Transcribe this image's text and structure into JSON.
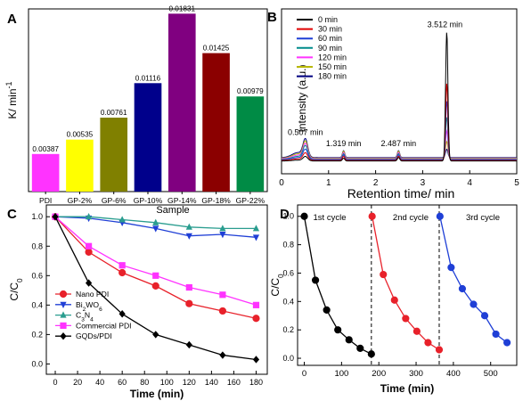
{
  "chart_data": [
    {
      "panel": "A",
      "type": "bar",
      "ylabel": "K/ min-1",
      "xlabel": "Sample",
      "categories": [
        "PDI",
        "GP-2%",
        "GP-6%",
        "GP-10%",
        "GP-14%",
        "GP-18%",
        "GP-22%"
      ],
      "values": [
        0.00387,
        0.00535,
        0.00761,
        0.01116,
        0.01831,
        0.01425,
        0.00979
      ],
      "labels": [
        "0.00387",
        "0.00535",
        "0.00761",
        "0.01116",
        "0.01831",
        "0.01425",
        "0.00979"
      ],
      "colors": [
        "#ff33ff",
        "#ffff00",
        "#808000",
        "#00008b",
        "#800080",
        "#8b0000",
        "#008b45"
      ],
      "ylim": [
        0,
        0.0188
      ]
    },
    {
      "panel": "B",
      "type": "line",
      "ylabel": "Intensity (a.u.)",
      "xlabel": "Retention time/ min",
      "xlim": [
        0,
        5
      ],
      "xticks": [
        "0",
        "1",
        "2",
        "3",
        "4",
        "5"
      ],
      "ylim": [
        0,
        1.0
      ],
      "series": [
        {
          "name": "0 min",
          "color": "#000000",
          "peak_heights": [
            0.03,
            0.02,
            0.025,
            0.92
          ]
        },
        {
          "name": "30 min",
          "color": "#e00000",
          "peak_heights": [
            0.05,
            0.03,
            0.03,
            0.55
          ]
        },
        {
          "name": "60 min",
          "color": "#1f3fd6",
          "peak_heights": [
            0.07,
            0.035,
            0.035,
            0.42
          ]
        },
        {
          "name": "90 min",
          "color": "#008b8b",
          "peak_heights": [
            0.09,
            0.04,
            0.04,
            0.3
          ]
        },
        {
          "name": "120 min",
          "color": "#ff33ff",
          "peak_heights": [
            0.1,
            0.045,
            0.045,
            0.2
          ]
        },
        {
          "name": "150 min",
          "color": "#b8b800",
          "peak_heights": [
            0.11,
            0.05,
            0.05,
            0.12
          ]
        },
        {
          "name": "180 min",
          "color": "#000080",
          "peak_heights": [
            0.12,
            0.05,
            0.05,
            0.06
          ]
        }
      ],
      "peak_positions": [
        0.507,
        1.319,
        2.487,
        3.512
      ],
      "annotations": [
        "0.507 min",
        "1.319 min",
        "2.487 min",
        "3.512 min"
      ]
    },
    {
      "panel": "C",
      "type": "line",
      "ylabel": "C/C0",
      "xlabel": "Time (min)",
      "x": [
        0,
        30,
        60,
        90,
        120,
        150,
        180
      ],
      "xlim": [
        -8,
        190
      ],
      "ylim": [
        -0.07,
        1.08
      ],
      "xticks": [
        0,
        20,
        40,
        60,
        80,
        100,
        120,
        140,
        160,
        180
      ],
      "yticks": [
        "0.0",
        "0.2",
        "0.4",
        "0.6",
        "0.8",
        "1.0"
      ],
      "series": [
        {
          "name": "Nano PDI",
          "color": "#e8212a",
          "marker": "circle",
          "values": [
            1.0,
            0.76,
            0.62,
            0.53,
            0.41,
            0.36,
            0.31
          ]
        },
        {
          "name": "Bi2WO6",
          "color": "#1f3fd6",
          "marker": "triangle-down",
          "values": [
            1.0,
            0.99,
            0.96,
            0.92,
            0.87,
            0.88,
            0.86
          ]
        },
        {
          "name": "C3N4",
          "color": "#2a9d8f",
          "marker": "triangle-up",
          "values": [
            1.0,
            1.0,
            0.98,
            0.96,
            0.93,
            0.92,
            0.92
          ]
        },
        {
          "name": "Commercial PDI",
          "color": "#ff33ff",
          "marker": "square",
          "values": [
            1.0,
            0.8,
            0.67,
            0.6,
            0.52,
            0.47,
            0.4
          ]
        },
        {
          "name": "GQDs/PDI",
          "color": "#000000",
          "marker": "diamond",
          "values": [
            1.0,
            0.55,
            0.34,
            0.2,
            0.13,
            0.06,
            0.03
          ]
        }
      ]
    },
    {
      "panel": "D",
      "type": "line",
      "ylabel": "C/C0",
      "xlabel": "Time (min)",
      "xlim": [
        -18,
        570
      ],
      "ylim": [
        -0.05,
        1.08
      ],
      "xticks": [
        0,
        100,
        200,
        300,
        400,
        500
      ],
      "yticks": [
        "0.0",
        "0.2",
        "0.4",
        "0.6",
        "0.8",
        "1.0"
      ],
      "cycle_labels": [
        "1st cycle",
        "2nd cycle",
        "3rd cycle"
      ],
      "dividers": [
        180,
        362
      ],
      "series": [
        {
          "name": "1st cycle",
          "color": "#000000",
          "x": [
            0,
            30,
            60,
            90,
            120,
            150,
            180
          ],
          "values": [
            1.0,
            0.55,
            0.34,
            0.2,
            0.13,
            0.07,
            0.03
          ]
        },
        {
          "name": "2nd cycle",
          "color": "#e8212a",
          "x": [
            182,
            212,
            242,
            272,
            302,
            332,
            362
          ],
          "values": [
            1.0,
            0.59,
            0.41,
            0.28,
            0.19,
            0.11,
            0.06
          ]
        },
        {
          "name": "3rd cycle",
          "color": "#1f3fd6",
          "x": [
            364,
            394,
            424,
            454,
            484,
            514,
            544
          ],
          "values": [
            1.0,
            0.64,
            0.49,
            0.38,
            0.3,
            0.17,
            0.11
          ]
        }
      ]
    }
  ]
}
